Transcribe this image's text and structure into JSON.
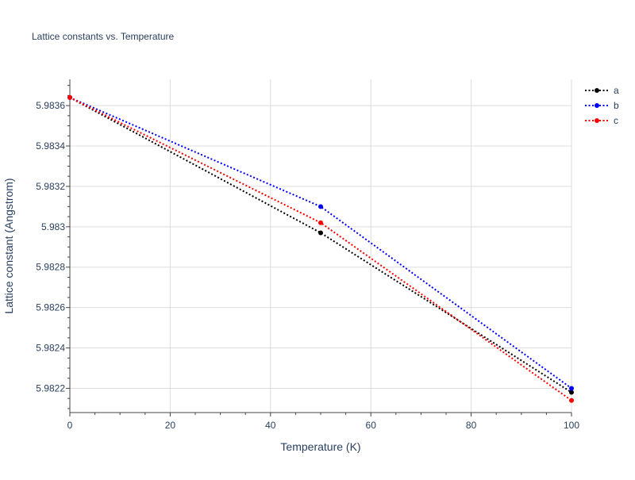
{
  "chart_data": {
    "type": "line",
    "title": "Lattice constants vs. Temperature",
    "xlabel": "Temperature (K)",
    "ylabel": "Lattice constant (Angstrom)",
    "xlim": [
      0,
      100
    ],
    "ylim": [
      5.98208,
      5.98373
    ],
    "x_ticks": [
      0,
      20,
      40,
      60,
      80,
      100
    ],
    "x_tick_labels": [
      "0",
      "20",
      "40",
      "60",
      "80",
      "100"
    ],
    "y_ticks": [
      5.9822,
      5.9824,
      5.9826,
      5.9828,
      5.983,
      5.9832,
      5.9834,
      5.9836
    ],
    "y_tick_labels": [
      "5.9822",
      "5.9824",
      "5.9826",
      "5.9828",
      "5.983",
      "5.9832",
      "5.9834",
      "5.9836"
    ],
    "grid": true,
    "legend_position": "top-right",
    "series": [
      {
        "name": "a",
        "color": "#000000",
        "x": [
          0,
          50,
          100
        ],
        "y": [
          5.98364,
          5.98297,
          5.98218
        ]
      },
      {
        "name": "b",
        "color": "#0000ff",
        "x": [
          0,
          50,
          100
        ],
        "y": [
          5.98364,
          5.9831,
          5.9822
        ]
      },
      {
        "name": "c",
        "color": "#ff0000",
        "x": [
          0,
          50,
          100
        ],
        "y": [
          5.98364,
          5.98302,
          5.98214
        ]
      }
    ]
  }
}
